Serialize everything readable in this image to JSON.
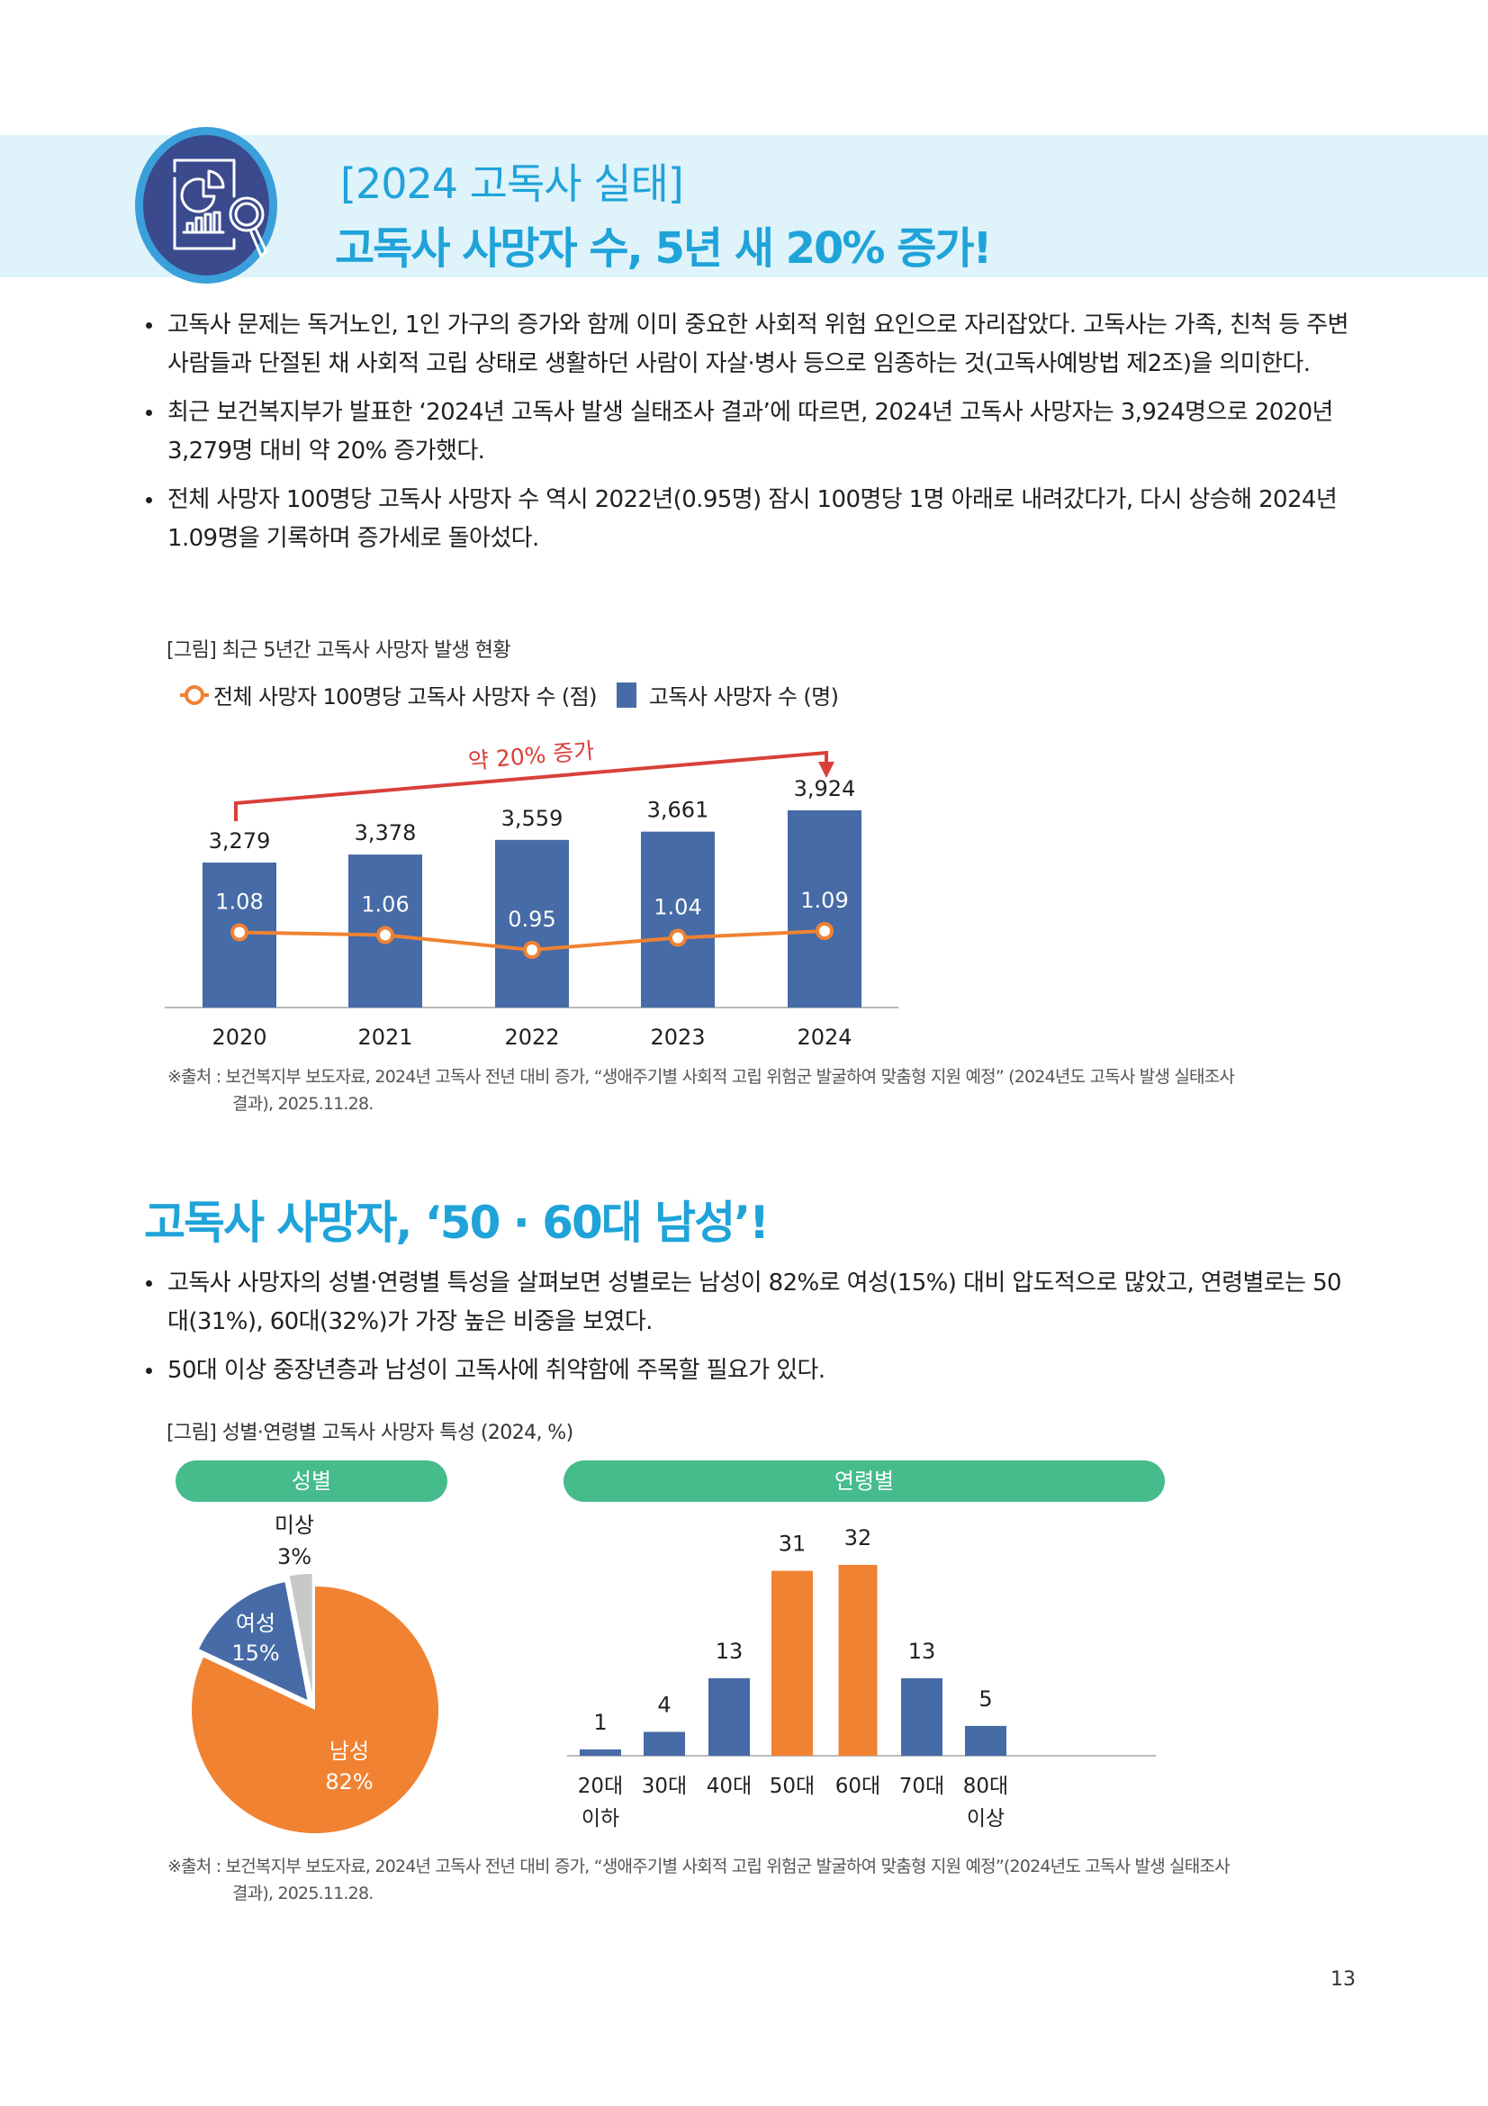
{
  "header": {
    "icon": "report-magnifier-icon",
    "title_line1": "[2024 고독사 실태]",
    "title_line2": "고독사 사망자 수, 5년 새 20% 증가!"
  },
  "section1": {
    "bullets": [
      "고독사 문제는 독거노인, 1인 가구의 증가와 함께 이미 중요한 사회적 위험 요인으로 자리잡았다. 고독사는 가족, 친척 등 주변 사람들과 단절된 채 사회적 고립 상태로 생활하던 사람이 자살·병사 등으로 임종하는 것(고독사예방법 제2조)을 의미한다.",
      "최근 보건복지부가 발표한 ‘2024년 고독사 발생 실태조사 결과’에 따르면, 2024년 고독사 사망자는 3,924명으로 2020년 3,279명 대비 약 20% 증가했다.",
      "전체 사망자 100명당 고독사 사망자 수 역시 2022년(0.95명) 잠시 100명당 1명 아래로 내려갔다가, 다시 상승해 2024년 1.09명을 기록하며 증가세로 돌아섰다."
    ],
    "figure_caption": "[그림] 최근 5년간 고독사 사망자 발생 현황",
    "legend": {
      "line_label": "전체 사망자 100명당 고독사 사망자 수 (점)",
      "bar_label": "고독사 사망자 수 (명)"
    },
    "annotation": "약 20% 증가",
    "source_line1": "※출처 : 보건복지부 보도자료, 2024년 고독사 전년 대비 증가, “생애주기별 사회적 고립 위험군 발굴하여 맞춤형 지원 예정” (2024년도 고독사 발생 실태조사",
    "source_line2": "결과), 2025.11.28."
  },
  "section2": {
    "title": "고독사 사망자, ‘50 · 60대 남성’!",
    "bullets": [
      "고독사 사망자의 성별·연령별 특성을 살펴보면 성별로는 남성이 82%로 여성(15%) 대비 압도적으로 많았고, 연령별로는 50대(31%), 60대(32%)가 가장 높은 비중을 보였다.",
      "50대 이상 중장년층과 남성이 고독사에 취약함에 주목할 필요가 있다."
    ],
    "figure_caption": "[그림] 성별·연령별 고독사 사망자 특성 (2024, %)",
    "pill_gender": "성별",
    "pill_age": "연령별",
    "source_line1": "※출처 : 보건복지부 보도자료, 2024년 고독사 전년 대비 증가, “생애주기별 사회적 고립 위험군 발굴하여 맞춤형 지원 예정”(2024년도 고독사 발생 실태조사",
    "source_line2": "결과), 2025.11.28."
  },
  "page_number": "13",
  "colors": {
    "accent": "#1fa3d9",
    "band": "#dff3fa",
    "bar_blue": "#466ba6",
    "orange": "#f08232",
    "arrow_red": "#d9403a",
    "pill_green": "#46bc8c",
    "grey": "#c8c8c8"
  },
  "chart_data": [
    {
      "type": "bar",
      "title": "최근 5년간 고독사 사망자 발생 현황",
      "categories": [
        "2020",
        "2021",
        "2022",
        "2023",
        "2024"
      ],
      "series": [
        {
          "name": "고독사 사망자 수 (명)",
          "kind": "bar",
          "values": [
            3279,
            3378,
            3559,
            3661,
            3924
          ],
          "labels": [
            "3,279",
            "3,378",
            "3,559",
            "3,661",
            "3,924"
          ]
        },
        {
          "name": "전체 사망자 100명당 고독사 사망자 수 (점)",
          "kind": "line",
          "values": [
            1.08,
            1.06,
            0.95,
            1.04,
            1.09
          ],
          "labels": [
            "1.08",
            "1.06",
            "0.95",
            "1.04",
            "1.09"
          ]
        }
      ],
      "annotation": "약 20% 증가",
      "xlabel": "",
      "ylabel": "",
      "grid": false,
      "legend_position": "top"
    },
    {
      "type": "pie",
      "title": "성별",
      "categories": [
        "남성",
        "여성",
        "미상"
      ],
      "values": [
        82,
        15,
        3
      ],
      "labels": [
        "82%",
        "15%",
        "3%"
      ]
    },
    {
      "type": "bar",
      "title": "연령별",
      "categories": [
        "20대 이하",
        "30대",
        "40대",
        "50대",
        "60대",
        "70대",
        "80대 이상"
      ],
      "values": [
        1,
        4,
        13,
        31,
        32,
        13,
        5
      ],
      "highlight": [
        "50대",
        "60대"
      ],
      "ylabel": "%",
      "grid": false
    }
  ]
}
